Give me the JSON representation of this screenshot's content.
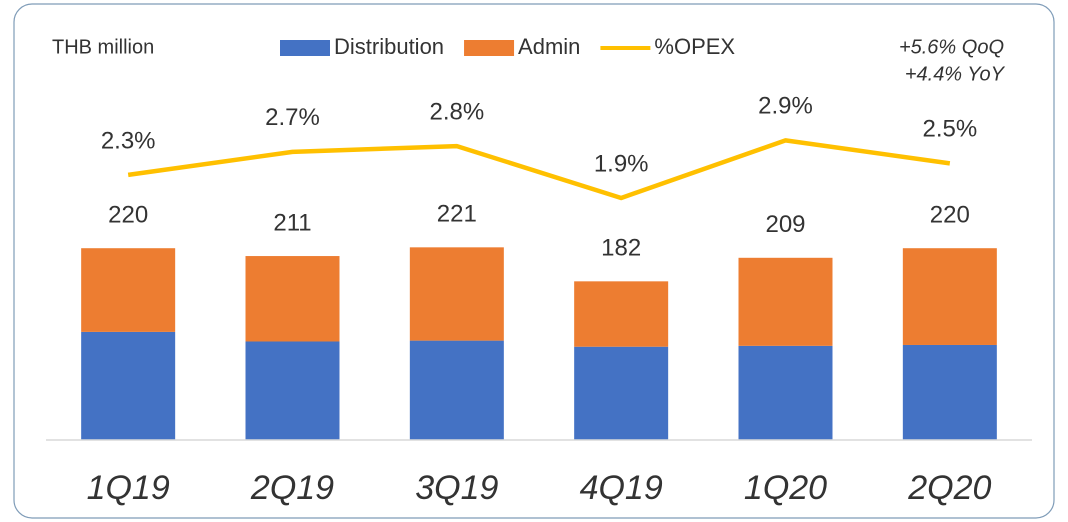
{
  "chart_data": {
    "type": "bar",
    "stacked": true,
    "unit_label": "THB million",
    "annotation": [
      "+5.6% QoQ",
      "+4.4% YoY"
    ],
    "categories": [
      "1Q19",
      "2Q19",
      "3Q19",
      "4Q19",
      "1Q20",
      "2Q20"
    ],
    "series": [
      {
        "name": "Distribution",
        "color": "#4472c4",
        "values": [
          124,
          113,
          114,
          107,
          108,
          109
        ]
      },
      {
        "name": "Admin",
        "color": "#ed7d31",
        "values": [
          96,
          98,
          107,
          75,
          101,
          111
        ]
      },
      {
        "name": "%OPEX",
        "type": "line",
        "axis": "y2",
        "color": "#ffc000",
        "values": [
          2.3,
          2.7,
          2.8,
          1.9,
          2.9,
          2.5
        ],
        "value_labels": [
          "2.3%",
          "2.7%",
          "2.8%",
          "1.9%",
          "2.9%",
          "2.5%"
        ]
      }
    ],
    "totals": [
      220,
      211,
      221,
      182,
      209,
      220
    ],
    "ylim": [
      0,
      390
    ],
    "y2lim": [
      -2.3,
      3.6
    ]
  }
}
